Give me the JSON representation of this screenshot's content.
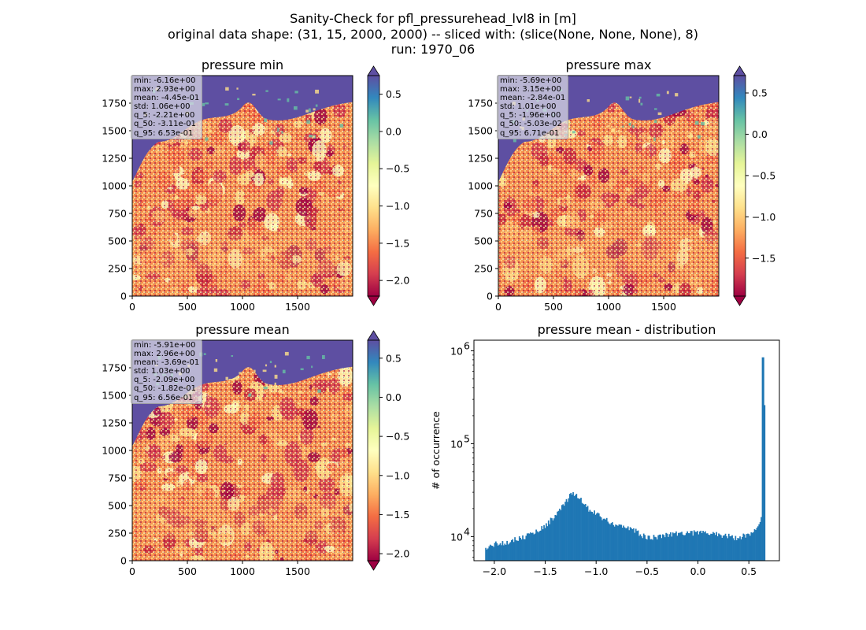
{
  "figure": {
    "suptitle_lines": [
      "Sanity-Check for pfl_pressurehead_lvl8 in [m]",
      "original data shape: (31, 15, 2000, 2000) -- sliced with: (slice(None, None, None), 8)",
      "run: 1970_06"
    ]
  },
  "panels": [
    {
      "title": "pressure min",
      "stats": [
        "min: -6.16e+00",
        "max: 2.93e+00",
        "mean: -4.45e-01",
        "std: 1.06e+00",
        "q_5: -2.21e+00",
        "q_50: -3.11e-01",
        "q_95: 6.53e-01"
      ],
      "colorbar_ticks": [
        0.5,
        0.0,
        -0.5,
        -1.0,
        -1.5,
        -2.0
      ],
      "colorbar_tick_labels": [
        "0.5",
        "0.0",
        "−0.5",
        "−1.0",
        "−1.5",
        "−2.0"
      ],
      "colorbar_range": [
        -2.21,
        0.75
      ]
    },
    {
      "title": "pressure max",
      "stats": [
        "min: -5.69e+00",
        "max: 3.15e+00",
        "mean: -2.84e-01",
        "std: 1.01e+00",
        "q_5: -1.96e+00",
        "q_50: -5.03e-02",
        "q_95: 6.71e-01"
      ],
      "colorbar_ticks": [
        0.5,
        0.0,
        -0.5,
        -1.0,
        -1.5
      ],
      "colorbar_tick_labels": [
        "0.5",
        "0.0",
        "−0.5",
        "−1.0",
        "−1.5"
      ],
      "colorbar_range": [
        -1.96,
        0.71
      ]
    },
    {
      "title": "pressure mean",
      "stats": [
        "min: -5.91e+00",
        "max: 2.96e+00",
        "mean: -3.69e-01",
        "std: 1.03e+00",
        "q_5: -2.09e+00",
        "q_50: -1.82e-01",
        "q_95: 6.56e-01"
      ],
      "colorbar_ticks": [
        0.5,
        0.0,
        -0.5,
        -1.0,
        -1.5,
        -2.0
      ],
      "colorbar_tick_labels": [
        "0.5",
        "0.0",
        "−0.5",
        "−1.0",
        "−1.5",
        "−2.0"
      ],
      "colorbar_range": [
        -2.09,
        0.73
      ]
    }
  ],
  "map_axes": {
    "x_ticks": [
      0,
      500,
      1000,
      1500
    ],
    "x_tick_labels": [
      "0",
      "500",
      "1000",
      "1500"
    ],
    "y_ticks": [
      0,
      250,
      500,
      750,
      1000,
      1250,
      1500,
      1750
    ],
    "y_tick_labels": [
      "0",
      "250",
      "500",
      "750",
      "1000",
      "1250",
      "1500",
      "1750"
    ],
    "x_range": [
      0,
      2000
    ],
    "y_range": [
      0,
      2000
    ]
  },
  "colormap": [
    "#9e0142",
    "#d53e4f",
    "#f46d43",
    "#fdae61",
    "#fee08b",
    "#ffffbf",
    "#e6f598",
    "#abdda4",
    "#66c2a5",
    "#3288bd",
    "#5e4fa2"
  ],
  "chart_data": {
    "type": "bar",
    "title": "pressure mean - distribution",
    "xlabel": "",
    "ylabel": "# of occurrence",
    "xlim": [
      -2.2,
      0.8
    ],
    "ylim": [
      5500,
      1300000
    ],
    "log_y": true,
    "bar_color": "#1f77b4",
    "x_ticks": [
      -2.0,
      -1.5,
      -1.0,
      -0.5,
      0.0,
      0.5
    ],
    "x_tick_labels": [
      "−2.0",
      "−1.5",
      "−1.0",
      "−0.5",
      "0.0",
      "0.5"
    ],
    "y_ticks": [
      10000,
      100000,
      1000000
    ],
    "y_tick_bases": [
      "10",
      "10",
      "10"
    ],
    "y_tick_exponents": [
      "4",
      "5",
      "6"
    ],
    "bin_range": [
      -2.09,
      0.66
    ],
    "profile": [
      [
        -2.09,
        7200
      ],
      [
        -2.05,
        7800
      ],
      [
        -2.0,
        8300
      ],
      [
        -1.9,
        8600
      ],
      [
        -1.8,
        9300
      ],
      [
        -1.7,
        10000
      ],
      [
        -1.6,
        11200
      ],
      [
        -1.5,
        13000
      ],
      [
        -1.4,
        17000
      ],
      [
        -1.3,
        23000
      ],
      [
        -1.25,
        28000
      ],
      [
        -1.2,
        28500
      ],
      [
        -1.15,
        25000
      ],
      [
        -1.1,
        21000
      ],
      [
        -1.05,
        19000
      ],
      [
        -1.0,
        18000
      ],
      [
        -0.95,
        16000
      ],
      [
        -0.9,
        15000
      ],
      [
        -0.85,
        14000
      ],
      [
        -0.8,
        13500
      ],
      [
        -0.75,
        13000
      ],
      [
        -0.7,
        12500
      ],
      [
        -0.65,
        12000
      ],
      [
        -0.6,
        11200
      ],
      [
        -0.55,
        10300
      ],
      [
        -0.5,
        9800
      ],
      [
        -0.45,
        9700
      ],
      [
        -0.4,
        10000
      ],
      [
        -0.3,
        10600
      ],
      [
        -0.2,
        10900
      ],
      [
        -0.1,
        11000
      ],
      [
        0.0,
        11000
      ],
      [
        0.1,
        10900
      ],
      [
        0.2,
        10600
      ],
      [
        0.28,
        10200
      ],
      [
        0.34,
        9800
      ],
      [
        0.38,
        9600
      ],
      [
        0.42,
        10000
      ],
      [
        0.46,
        10300
      ],
      [
        0.5,
        10800
      ],
      [
        0.55,
        11500
      ],
      [
        0.58,
        12000
      ],
      [
        0.6,
        13000
      ],
      [
        0.62,
        15000
      ],
      [
        0.63,
        20000
      ]
    ],
    "spikes": [
      [
        0.64,
        850000
      ],
      [
        0.65,
        260000
      ]
    ]
  }
}
